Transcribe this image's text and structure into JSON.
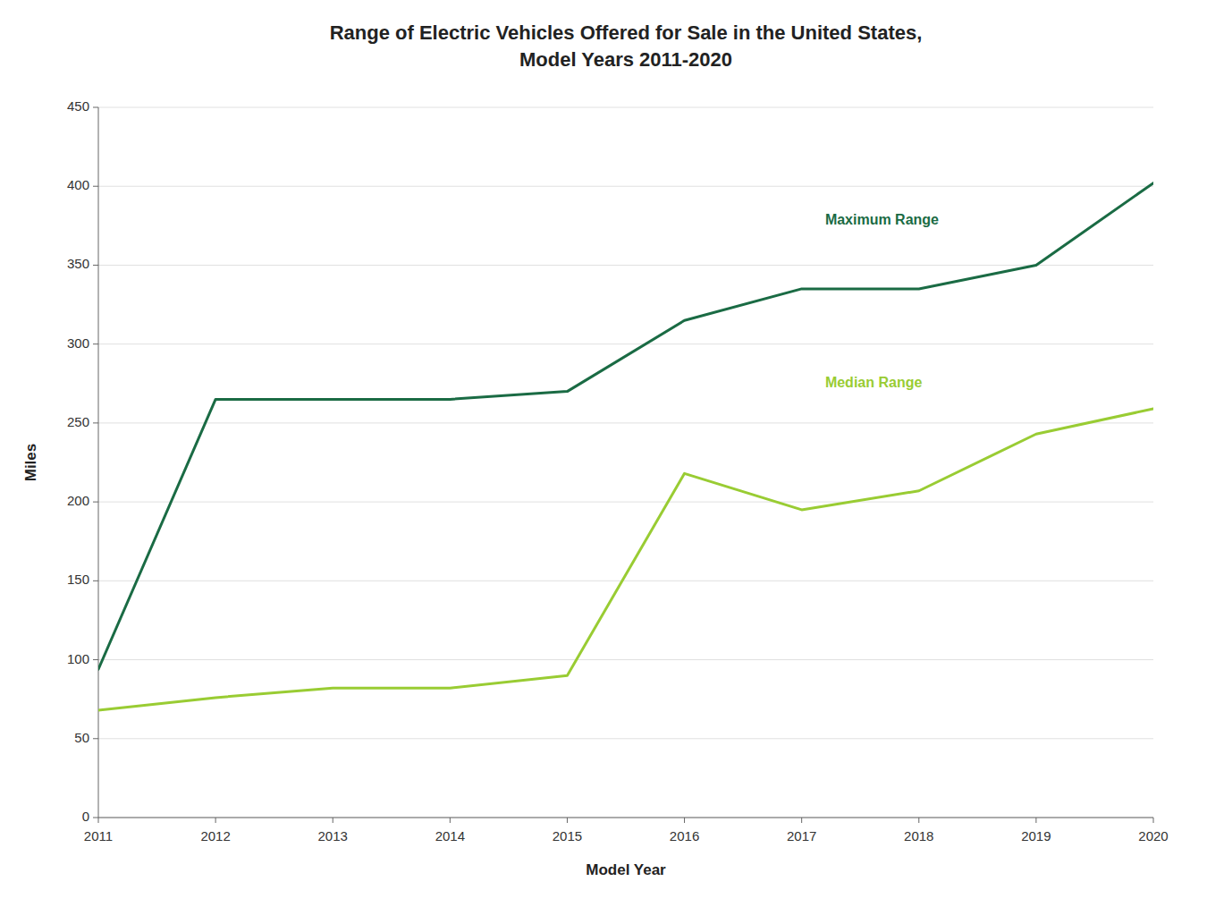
{
  "chart_data": {
    "type": "line",
    "title": "Range of Electric Vehicles Offered for Sale in the United States,",
    "subtitle": "Model Years 2011-2020",
    "x_label": "Model Year",
    "y_label": "Miles",
    "x": [
      2011,
      2012,
      2013,
      2014,
      2015,
      2016,
      2017,
      2018,
      2019,
      2020
    ],
    "series": [
      {
        "color": "#1a6b44",
        "values": [
          94,
          265,
          265,
          265,
          270,
          315,
          335,
          335,
          350,
          402
        ]
      },
      {
        "color": "#99cc33",
        "values": [
          68,
          76,
          82,
          82,
          90,
          218,
          195,
          207,
          243,
          259
        ]
      }
    ],
    "annotations": [
      {
        "text": "Maximum Range",
        "x": 2017.2,
        "y": 378,
        "color": "#1a6b44"
      },
      {
        "text": "Median Range",
        "x": 2017.2,
        "y": 275,
        "color": "#99cc33"
      }
    ],
    "xlim": [
      2011,
      2020
    ],
    "xticks": [
      2011,
      2012,
      2013,
      2014,
      2015,
      2016,
      2017,
      2018,
      2019,
      2020
    ],
    "ylim": [
      0,
      450
    ],
    "yticks": [
      0,
      50,
      100,
      150,
      200,
      250,
      300,
      350,
      400,
      450
    ],
    "grid": true
  }
}
